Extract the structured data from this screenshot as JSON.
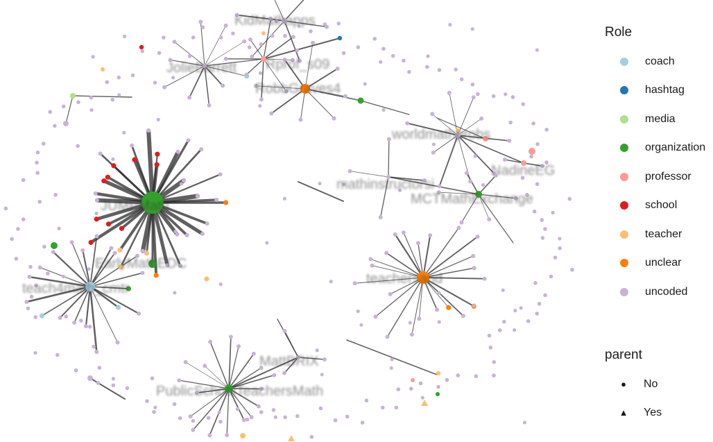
{
  "legend": {
    "role_title": "Role",
    "roles": [
      {
        "key": "coach",
        "label": "coach",
        "color": "#a6cee3"
      },
      {
        "key": "hashtag",
        "label": "hashtag",
        "color": "#1f78b4"
      },
      {
        "key": "media",
        "label": "media",
        "color": "#b2df8a"
      },
      {
        "key": "organization",
        "label": "organization",
        "color": "#33a02c"
      },
      {
        "key": "professor",
        "label": "professor",
        "color": "#fb9a99"
      },
      {
        "key": "school",
        "label": "school",
        "color": "#e31a1c"
      },
      {
        "key": "teacher",
        "label": "teacher",
        "color": "#fdbf6f"
      },
      {
        "key": "unclear",
        "label": "unclear",
        "color": "#ff7f00"
      },
      {
        "key": "uncoded",
        "label": "uncoded",
        "color": "#cab2d6"
      }
    ],
    "parent_title": "parent",
    "parents": [
      {
        "key": "no",
        "label": "No",
        "shape": "circle-shape"
      },
      {
        "key": "yes",
        "label": "Yes",
        "shape": "triangle-shape"
      }
    ]
  },
  "network": {
    "hubs": [
      {
        "label": "JUMPMath",
        "role": "organization"
      },
      {
        "label": "EarlyMathEDC",
        "role": "organization"
      },
      {
        "label": "teach4math_cmtr",
        "role": "coach"
      },
      {
        "label": "teachersand",
        "role": "unclear"
      },
      {
        "label": "KidMathapps",
        "role": "uncoded"
      },
      {
        "label": "JolieBarrett",
        "role": "uncoded"
      },
      {
        "label": "Rprof_s09",
        "role": "professor"
      },
      {
        "label": "RobbGraves4",
        "role": "unclear"
      },
      {
        "label": "worldmathprobs",
        "role": "uncoded"
      },
      {
        "label": "NadineEG",
        "role": "professor"
      },
      {
        "label": "mathinstructorsi",
        "role": "uncoded"
      },
      {
        "label": "MCTMathExchange",
        "role": "organization"
      },
      {
        "label": "MattBRIX",
        "role": "uncoded"
      },
      {
        "label": "PublicSchoolTeachersMath",
        "role": "organization"
      }
    ]
  }
}
